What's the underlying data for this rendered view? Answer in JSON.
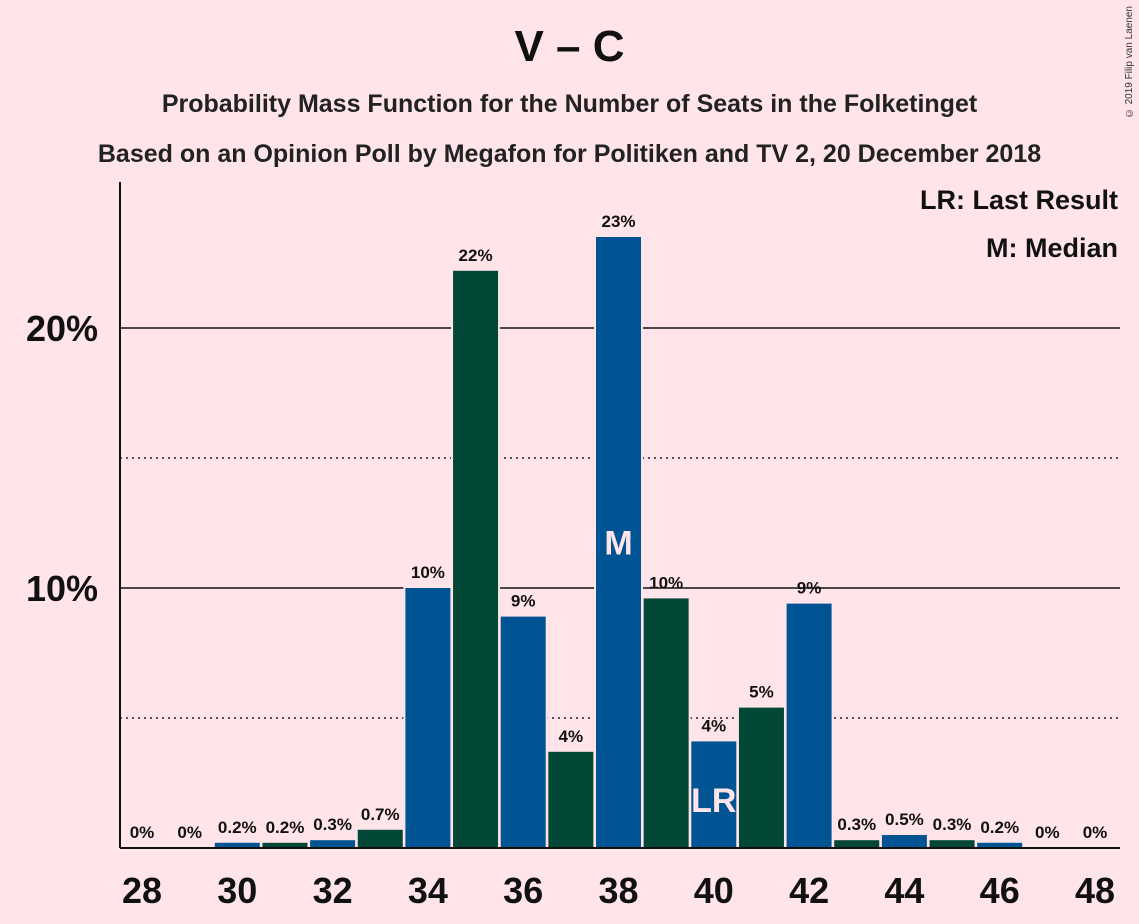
{
  "header": {
    "title": "V – C",
    "subtitle": "Probability Mass Function for the Number of Seats in the Folketinget",
    "source_line": "Based on an Opinion Poll by Megafon for Politiken and TV 2, 20 December 2018",
    "copyright": "© 2019 Filip van Laenen"
  },
  "chart_data": {
    "type": "bar",
    "title": "V – C",
    "subtitle": "Probability Mass Function for the Number of Seats in the Folketinget",
    "x": [
      28,
      29,
      30,
      31,
      32,
      33,
      34,
      35,
      36,
      37,
      38,
      39,
      40,
      41,
      42,
      43,
      44,
      45,
      46,
      47,
      48
    ],
    "values": [
      0,
      0,
      0.2,
      0.2,
      0.3,
      0.7,
      10,
      22.2,
      8.9,
      3.7,
      23.5,
      9.6,
      4.1,
      5.4,
      9.4,
      0.3,
      0.5,
      0.3,
      0.2,
      0,
      0
    ],
    "data_labels": [
      "0%",
      "0%",
      "0.2%",
      "0.2%",
      "0.3%",
      "0.7%",
      "10%",
      "22%",
      "9%",
      "4%",
      "23%",
      "10%",
      "4%",
      "5%",
      "9%",
      "0.3%",
      "0.5%",
      "0.3%",
      "0.2%",
      "0%",
      "0%"
    ],
    "x_tick_labels": [
      "28",
      "30",
      "32",
      "34",
      "36",
      "38",
      "40",
      "42",
      "44",
      "46",
      "48"
    ],
    "y_tick_labels": [
      "10%",
      "20%"
    ],
    "ylim": [
      0,
      25.7
    ],
    "xlabel": "",
    "ylabel": "",
    "gridlines": {
      "solid": [
        10,
        20
      ],
      "dotted": [
        5,
        15
      ]
    },
    "median_seat": 38,
    "median_marker": "M",
    "last_result_seat": 40,
    "last_result_marker": "LR",
    "legend": {
      "placement": "top-right",
      "items": [
        "LR: Last Result",
        "M: Median"
      ]
    },
    "colors": {
      "blue": "#005494",
      "green": "#034737",
      "background": "#FFE4E9",
      "marker_text": "#FFE4E9"
    }
  }
}
